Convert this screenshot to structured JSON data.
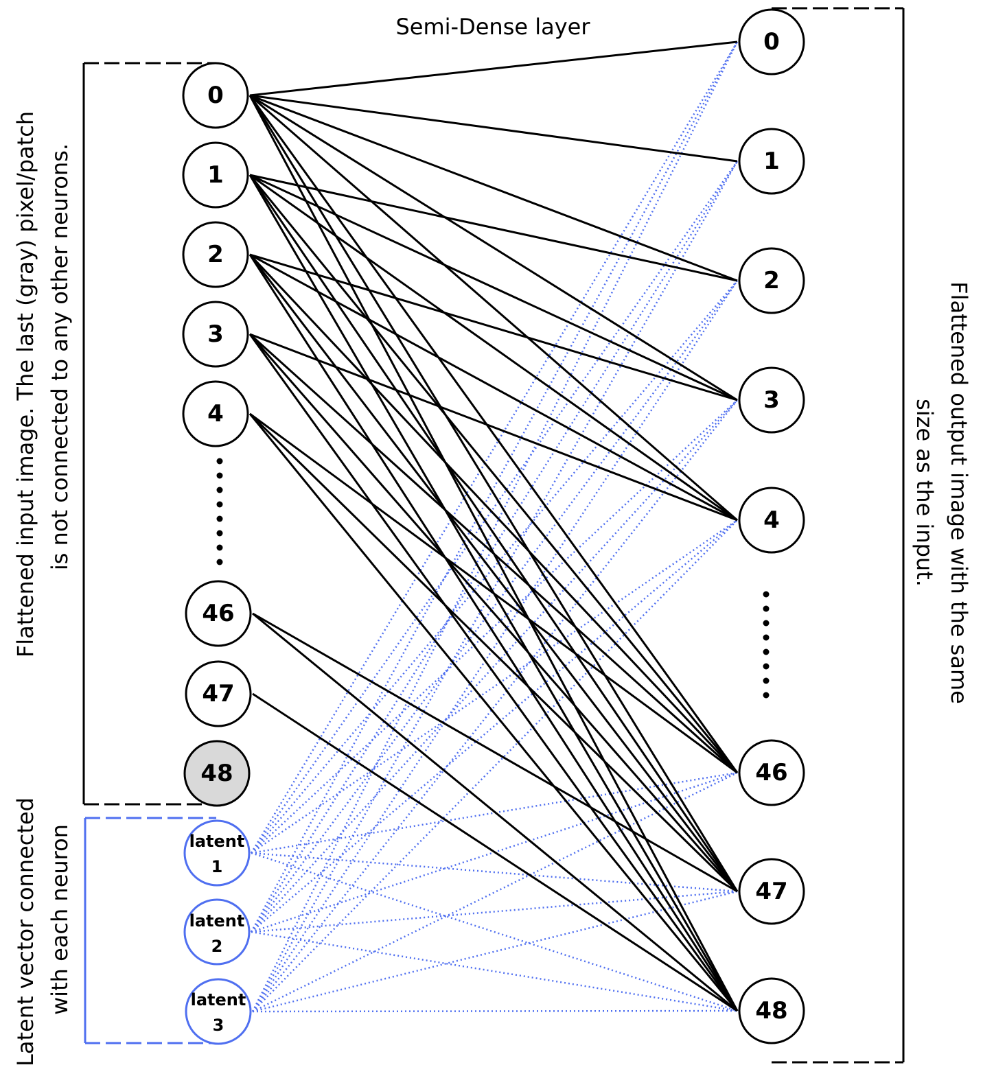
{
  "title": "Semi-Dense layer",
  "input_caption": {
    "line1": "Flattened input image. The last (gray) pixel/patch",
    "line2": "is not connected to any other neurons."
  },
  "output_caption": {
    "line1": "Flattened output image with the same",
    "line2": "size as the input."
  },
  "latent_caption": {
    "line1": "Latent vector connected",
    "line2": "with each neuron"
  },
  "colors": {
    "latent": "#4f6ff0",
    "masked_neuron": "#d9d9d9",
    "edge": "#000000"
  },
  "input_neurons": [
    {
      "id": "in-0",
      "label": "0"
    },
    {
      "id": "in-1",
      "label": "1"
    },
    {
      "id": "in-2",
      "label": "2"
    },
    {
      "id": "in-3",
      "label": "3"
    },
    {
      "id": "in-4",
      "label": "4"
    },
    {
      "id": "in-46",
      "label": "46"
    },
    {
      "id": "in-47",
      "label": "47"
    },
    {
      "id": "in-48",
      "label": "48",
      "masked": true
    }
  ],
  "latent_neurons": [
    {
      "id": "lat-1",
      "label": "latent",
      "index": "1"
    },
    {
      "id": "lat-2",
      "label": "latent",
      "index": "2"
    },
    {
      "id": "lat-3",
      "label": "latent",
      "index": "3"
    }
  ],
  "output_neurons": [
    {
      "id": "out-0",
      "label": "0"
    },
    {
      "id": "out-1",
      "label": "1"
    },
    {
      "id": "out-2",
      "label": "2"
    },
    {
      "id": "out-3",
      "label": "3"
    },
    {
      "id": "out-4",
      "label": "4"
    },
    {
      "id": "out-46",
      "label": "46"
    },
    {
      "id": "out-47",
      "label": "47"
    },
    {
      "id": "out-48",
      "label": "48"
    }
  ],
  "solid_edges": [
    [
      "in-0",
      "out-0"
    ],
    [
      "in-0",
      "out-1"
    ],
    [
      "in-0",
      "out-2"
    ],
    [
      "in-0",
      "out-3"
    ],
    [
      "in-0",
      "out-4"
    ],
    [
      "in-0",
      "out-46"
    ],
    [
      "in-0",
      "out-47"
    ],
    [
      "in-0",
      "out-48"
    ],
    [
      "in-1",
      "out-2"
    ],
    [
      "in-1",
      "out-3"
    ],
    [
      "in-1",
      "out-4"
    ],
    [
      "in-1",
      "out-46"
    ],
    [
      "in-1",
      "out-47"
    ],
    [
      "in-1",
      "out-48"
    ],
    [
      "in-2",
      "out-3"
    ],
    [
      "in-2",
      "out-4"
    ],
    [
      "in-2",
      "out-46"
    ],
    [
      "in-2",
      "out-47"
    ],
    [
      "in-2",
      "out-48"
    ],
    [
      "in-3",
      "out-4"
    ],
    [
      "in-3",
      "out-46"
    ],
    [
      "in-3",
      "out-47"
    ],
    [
      "in-3",
      "out-48"
    ],
    [
      "in-4",
      "out-46"
    ],
    [
      "in-4",
      "out-47"
    ],
    [
      "in-4",
      "out-48"
    ],
    [
      "in-46",
      "out-47"
    ],
    [
      "in-46",
      "out-48"
    ],
    [
      "in-47",
      "out-48"
    ]
  ],
  "latent_edges_to_all_outputs": true
}
